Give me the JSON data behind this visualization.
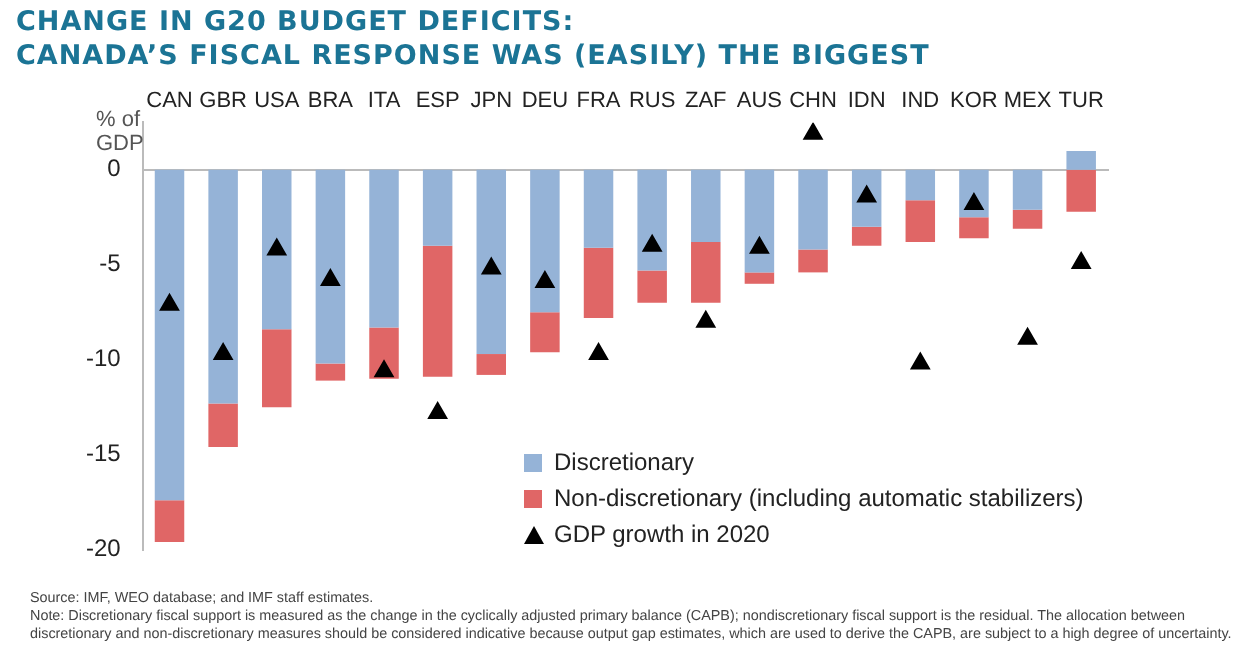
{
  "chart_data": {
    "type": "bar",
    "title": "CHANGE IN G20 BUDGET DEFICITS:\nCANADA’S FISCAL RESPONSE WAS (EASILY) THE BIGGEST",
    "ylabel": "% of GDP",
    "categories": [
      "CAN",
      "GBR",
      "USA",
      "BRA",
      "ITA",
      "ESP",
      "JPN",
      "DEU",
      "FRA",
      "RUS",
      "ZAF",
      "AUS",
      "CHN",
      "IDN",
      "IND",
      "KOR",
      "MEX",
      "TUR"
    ],
    "stacked": true,
    "series": [
      {
        "name": "Discretionary",
        "color": "#95b3d7",
        "values": [
          -17.4,
          -12.3,
          -8.4,
          -10.2,
          -8.3,
          -4.0,
          -9.7,
          -7.5,
          -4.1,
          -5.3,
          -3.8,
          -5.4,
          -4.2,
          -3.0,
          -1.6,
          -2.5,
          -2.1,
          1.0
        ]
      },
      {
        "name": "Non-discretionary (including automatic stabilizers)",
        "color": "#e06666",
        "values": [
          -2.2,
          -2.3,
          -4.1,
          -0.9,
          -2.7,
          -6.9,
          -1.1,
          -2.1,
          -3.7,
          -1.7,
          -3.2,
          -0.6,
          -1.2,
          -1.0,
          -2.2,
          -1.1,
          -1.0,
          -2.2
        ]
      },
      {
        "name": "GDP growth in 2020",
        "type": "scatter",
        "marker": "triangle",
        "color": "#000000",
        "values": [
          -7.1,
          -9.7,
          -4.2,
          -5.8,
          -10.6,
          -12.8,
          -5.2,
          -5.9,
          -9.7,
          -4.0,
          -8.0,
          -4.1,
          1.9,
          -1.4,
          -10.2,
          -1.8,
          -8.9,
          -4.9
        ]
      }
    ],
    "ylim": [
      -20,
      2.5
    ],
    "yticks": [
      0,
      -5,
      -10,
      -15,
      -20
    ],
    "grid": false,
    "legend": "bottom",
    "annotations": [
      "Source: IMF, WEO database; and IMF staff estimates.",
      "Note: Discretionary fiscal support is measured as the change in the cyclically adjusted primary balance (CAPB); nondiscretionary fiscal support is the residual. The allocation between discretionary and non-discretionary measures should be considered indicative because output gap estimates, which are used to derive the CAPB, are subject to a high degree of uncertainty."
    ]
  }
}
